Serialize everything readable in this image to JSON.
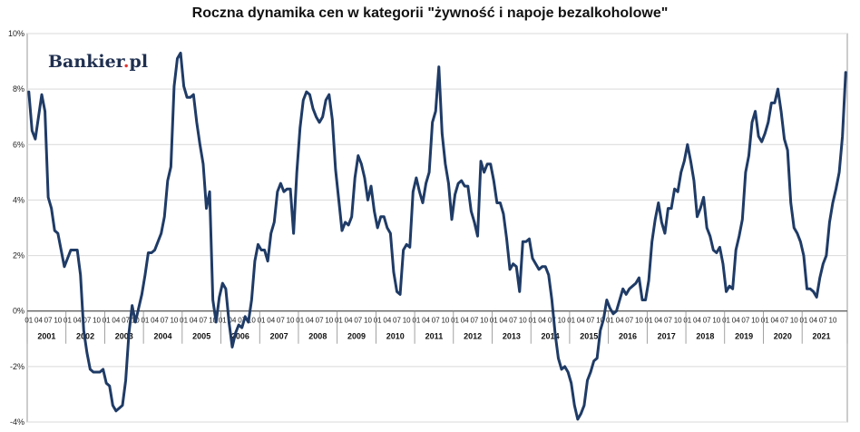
{
  "watermark": {
    "text_main": "Bankier",
    "text_dot": ".",
    "text_tail": "pl",
    "dot_color": "#e3342f",
    "color": "#1f2f4f"
  },
  "colors": {
    "line": "#1f3b66",
    "grid": "#d9d9d9",
    "axis": "#333333"
  },
  "chart_data": {
    "type": "line",
    "title": "Roczna dynamika cen w kategorii \"żywność i napoje bezalkoholowe\"",
    "xlabel": "",
    "ylabel": "",
    "ylim": [
      -4,
      10
    ],
    "yticks": [
      -4,
      -2,
      0,
      2,
      4,
      6,
      8,
      10
    ],
    "ytick_labels": [
      "-4%",
      "-2%",
      "0%",
      "2%",
      "4%",
      "6%",
      "8%",
      "10%"
    ],
    "grid": true,
    "legend": "none",
    "month_tick_labels": [
      "01",
      "04",
      "07",
      "10"
    ],
    "years": [
      "2001",
      "2002",
      "2003",
      "2004",
      "2005",
      "2006",
      "2007",
      "2008",
      "2009",
      "2010",
      "2011",
      "2012",
      "2013",
      "2014",
      "2015",
      "2016",
      "2017",
      "2018",
      "2019",
      "2020",
      "2021"
    ],
    "x_start": "2001-01",
    "x_end": "2021-11",
    "series": [
      {
        "values": [
          7.9,
          6.5,
          6.2,
          7.0,
          7.8,
          7.2,
          4.1,
          3.7,
          2.9,
          2.8,
          2.2,
          1.6,
          1.9,
          2.2,
          2.2,
          2.2,
          1.3,
          -0.7,
          -1.5,
          -2.1,
          -2.2,
          -2.2,
          -2.2,
          -2.1,
          -2.6,
          -2.7,
          -3.4,
          -3.6,
          -3.5,
          -3.4,
          -2.5,
          -0.8,
          0.2,
          -0.4,
          0.1,
          0.6,
          1.3,
          2.1,
          2.1,
          2.2,
          2.5,
          2.8,
          3.4,
          4.7,
          5.2,
          8.1,
          9.1,
          9.3,
          8.1,
          7.7,
          7.7,
          7.8,
          6.8,
          6.0,
          5.3,
          3.7,
          4.3,
          0.4,
          -0.4,
          0.5,
          1.0,
          0.8,
          -0.4,
          -1.3,
          -0.8,
          -0.5,
          -0.6,
          -0.2,
          -0.4,
          0.4,
          1.8,
          2.4,
          2.2,
          2.2,
          1.8,
          2.8,
          3.2,
          4.3,
          4.6,
          4.3,
          4.4,
          4.4,
          2.8,
          5.0,
          6.6,
          7.6,
          7.9,
          7.8,
          7.3,
          7.0,
          6.8,
          7.0,
          7.6,
          7.8,
          6.9,
          5.1,
          4.0,
          2.9,
          3.2,
          3.1,
          3.4,
          4.8,
          5.6,
          5.3,
          4.8,
          4.0,
          4.5,
          3.6,
          3.0,
          3.4,
          3.4,
          3.0,
          2.8,
          1.4,
          0.7,
          0.6,
          2.2,
          2.4,
          2.3,
          4.3,
          4.8,
          4.3,
          3.9,
          4.6,
          5.0,
          6.8,
          7.2,
          8.8,
          6.4,
          5.3,
          4.6,
          3.3,
          4.2,
          4.6,
          4.7,
          4.5,
          4.5,
          3.6,
          3.2,
          2.7,
          5.4,
          5.0,
          5.3,
          5.3,
          4.7,
          3.9,
          3.9,
          3.5,
          2.6,
          1.5,
          1.7,
          1.6,
          0.7,
          2.5,
          2.5,
          2.6,
          1.9,
          1.7,
          1.5,
          1.6,
          1.6,
          1.3,
          0.4,
          -0.8,
          -1.7,
          -2.1,
          -2.0,
          -2.2,
          -2.6,
          -3.4,
          -3.9,
          -3.7,
          -3.4,
          -2.5,
          -2.2,
          -1.8,
          -1.7,
          -0.7,
          -0.3,
          0.4,
          0.1,
          -0.1,
          0.0,
          0.4,
          0.8,
          0.6,
          0.8,
          0.9,
          1.0,
          1.2,
          0.4,
          0.4,
          1.1,
          2.5,
          3.3,
          3.9,
          3.2,
          2.8,
          3.7,
          3.7,
          4.4,
          4.3,
          5.0,
          5.4,
          6.0,
          5.4,
          4.7,
          3.4,
          3.7,
          4.1,
          3.0,
          2.7,
          2.2,
          2.1,
          2.3,
          1.7,
          0.7,
          0.9,
          0.8,
          2.2,
          2.7,
          3.3,
          5.0,
          5.6,
          6.8,
          7.2,
          6.3,
          6.1,
          6.4,
          6.8,
          7.5,
          7.5,
          8.0,
          7.2,
          6.2,
          5.8,
          3.9,
          3.0,
          2.8,
          2.5,
          2.0,
          0.8,
          0.8,
          0.7,
          0.5,
          1.2,
          1.7,
          2.0,
          3.2,
          3.9,
          4.4,
          5.0,
          6.3,
          8.6
        ]
      }
    ]
  }
}
